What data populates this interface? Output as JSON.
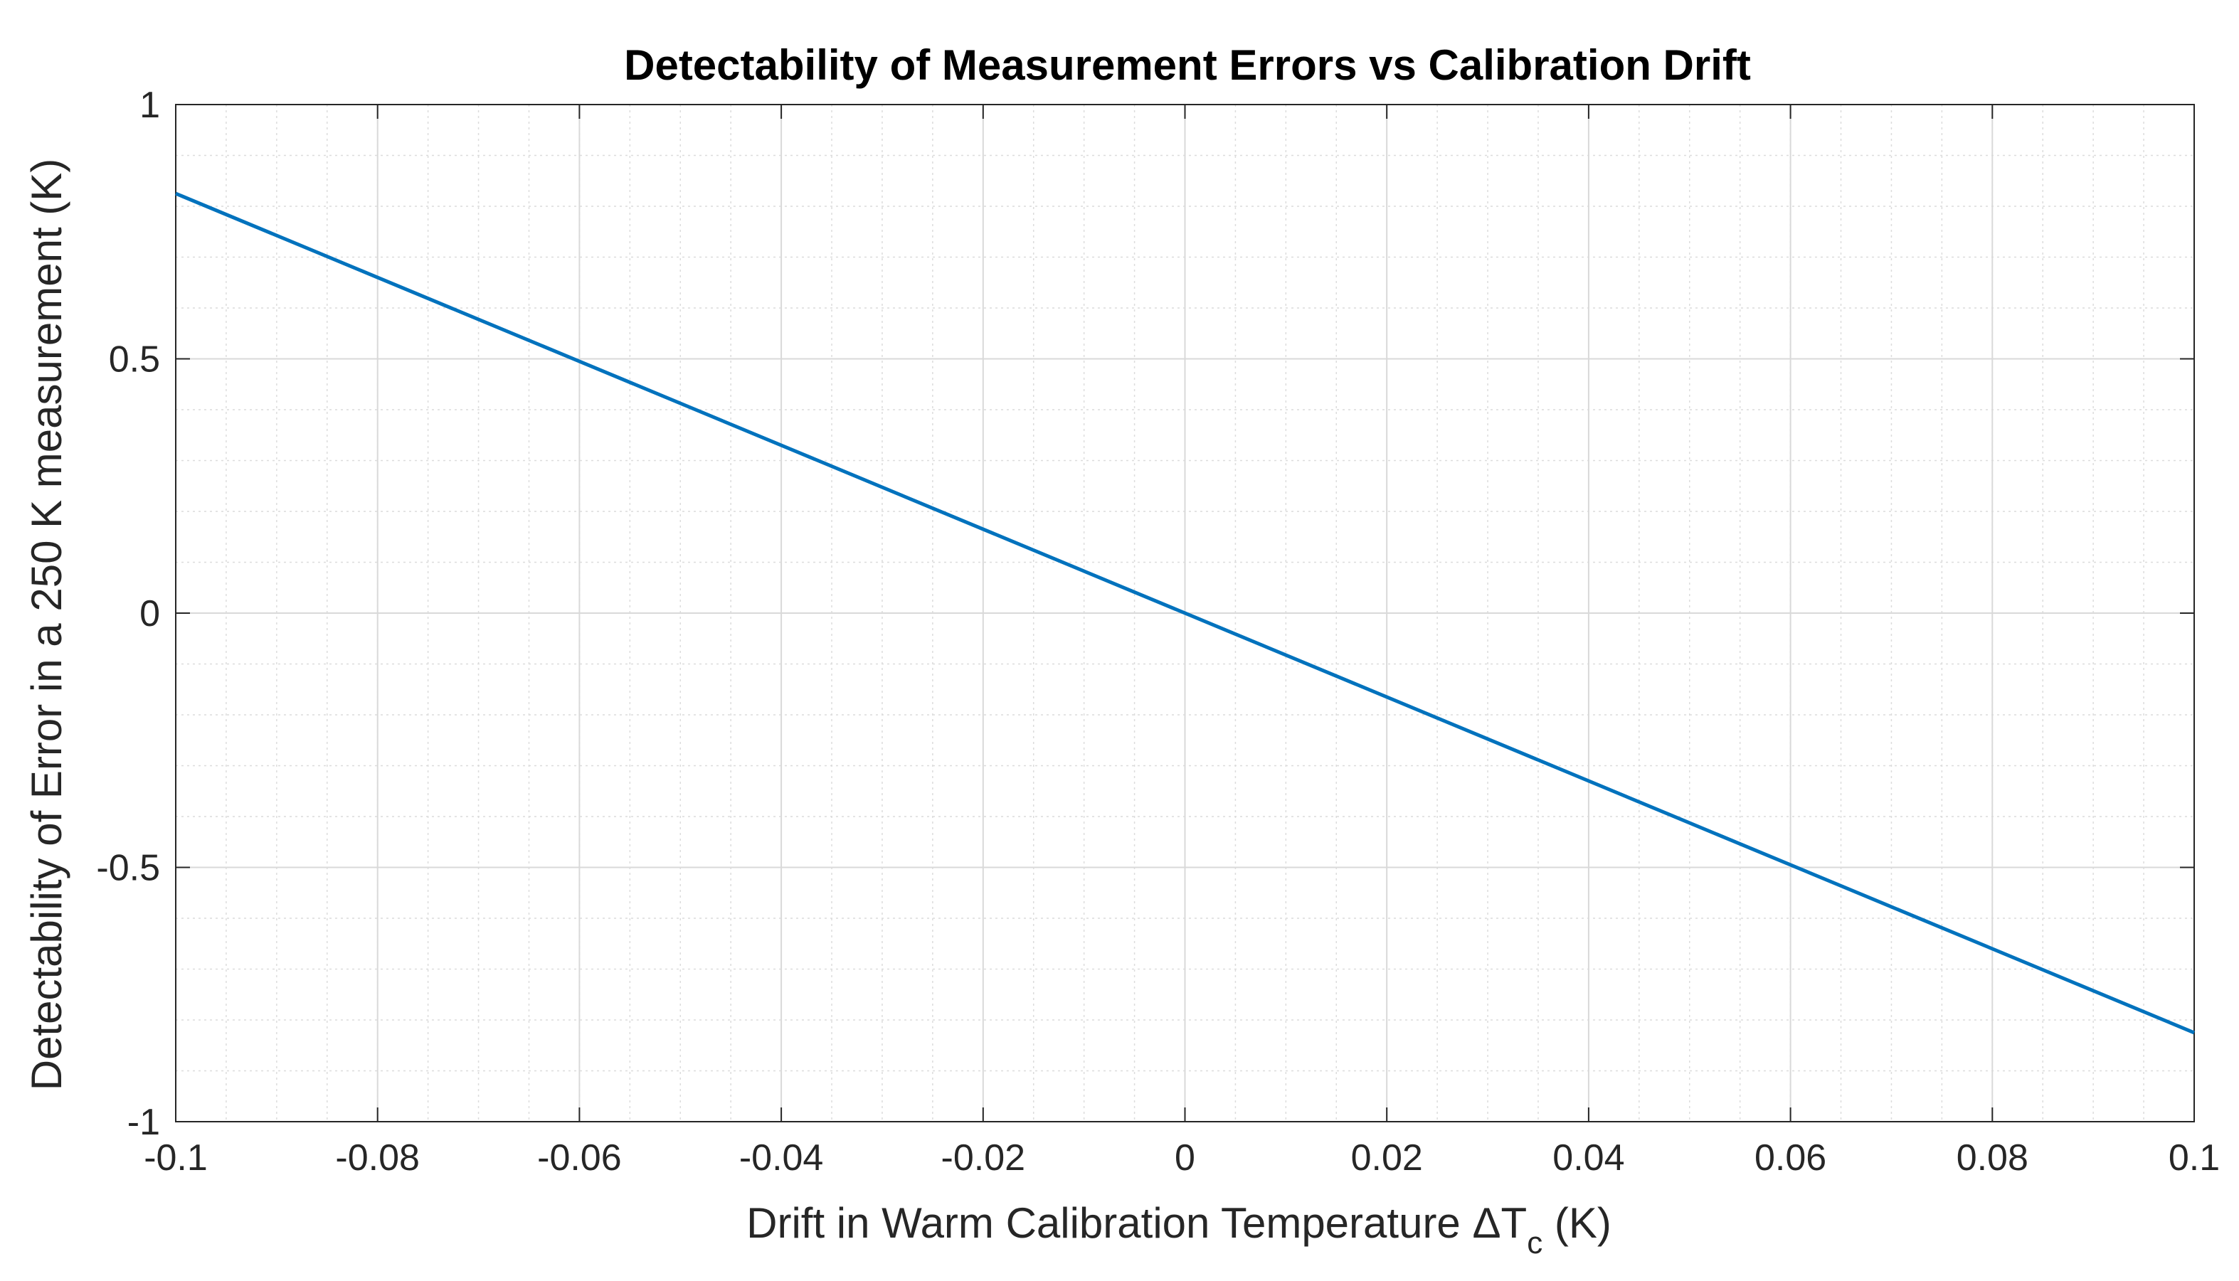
{
  "chart_data": {
    "type": "line",
    "title": "Detectability of Measurement Errors vs Calibration Drift",
    "xlabel": "Drift in Warm Calibration Temperature ΔT",
    "xlabel_subscript": "c",
    "xlabel_unit": " (K)",
    "ylabel": "Detectability of Error in a 250 K measurement (K)",
    "xlim": [
      -0.1,
      0.1
    ],
    "ylim": [
      -1,
      1
    ],
    "xticks": [
      -0.1,
      -0.08,
      -0.06,
      -0.04,
      -0.02,
      0,
      0.02,
      0.04,
      0.06,
      0.08,
      0.1
    ],
    "xtick_labels": [
      "-0.1",
      "-0.08",
      "-0.06",
      "-0.04",
      "-0.02",
      "0",
      "0.02",
      "0.04",
      "0.06",
      "0.08",
      "0.1"
    ],
    "yticks": [
      -1,
      -0.5,
      0,
      0.5,
      1
    ],
    "ytick_labels": [
      "-1",
      "-0.5",
      "0",
      "0.5",
      "1"
    ],
    "grid": true,
    "minor_grid": true,
    "series": [
      {
        "name": "detectability",
        "color": "#0072BD",
        "x": [
          -0.1,
          0.1
        ],
        "y": [
          0.825,
          -0.825
        ]
      }
    ]
  }
}
